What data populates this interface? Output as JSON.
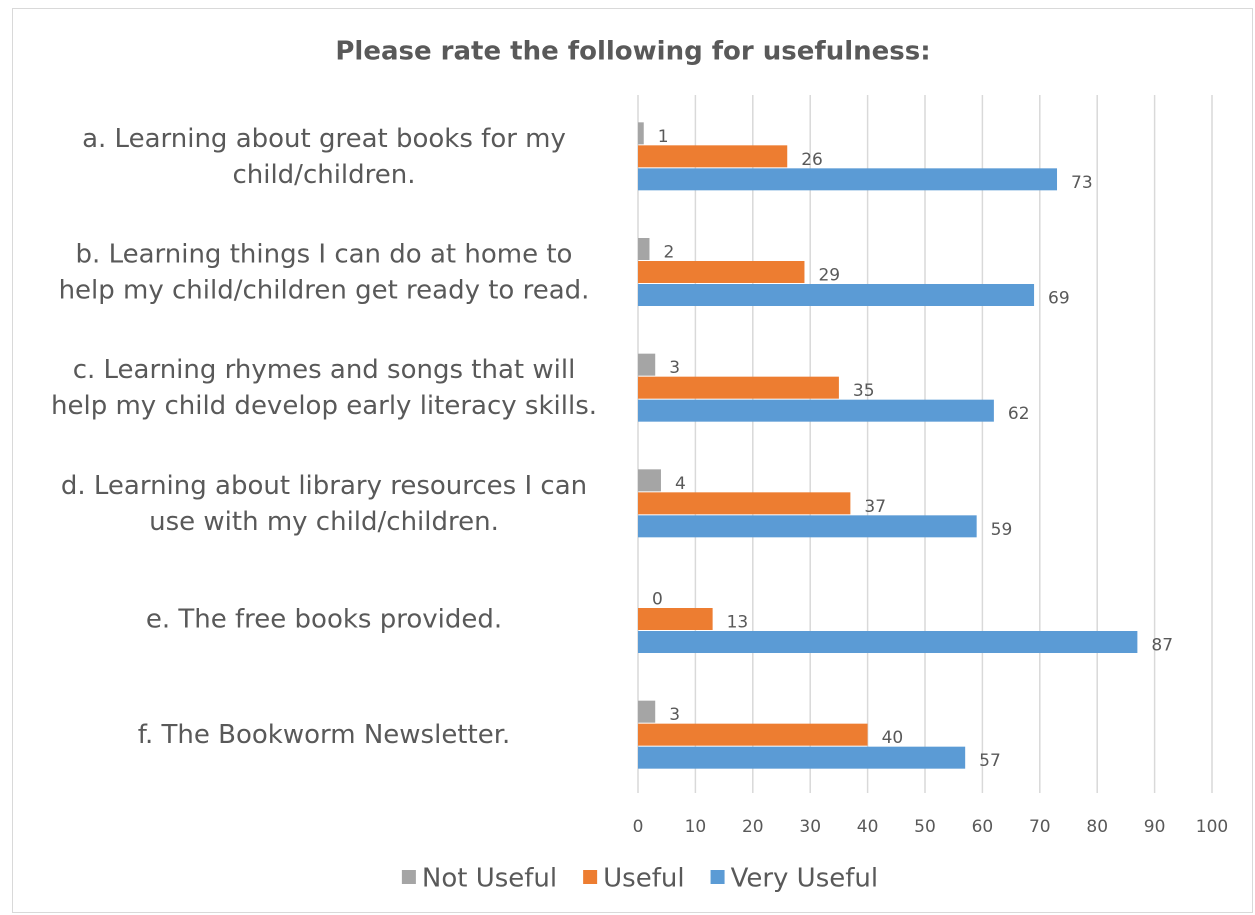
{
  "chart_data": {
    "type": "bar",
    "orientation": "horizontal",
    "title": "Please rate the following for usefulness:",
    "categories": [
      "a. Learning about great books for my child/children.",
      "b. Learning things I can do at home to help my child/children get ready to read.",
      "c. Learning rhymes and songs that will help my child develop early literacy skills.",
      "d. Learning about library resources I can use with my child/children.",
      "e. The free books provided.",
      "f. The Bookworm Newsletter."
    ],
    "series": [
      {
        "name": "Not Useful",
        "color": "#a5a5a5",
        "values": [
          1,
          2,
          3,
          4,
          0,
          3
        ]
      },
      {
        "name": "Useful",
        "color": "#ed7d31",
        "values": [
          26,
          29,
          35,
          37,
          13,
          40
        ]
      },
      {
        "name": "Very Useful",
        "color": "#5b9bd5",
        "values": [
          73,
          69,
          62,
          59,
          87,
          57
        ]
      }
    ],
    "xlim": [
      0,
      100
    ],
    "xticks": [
      0,
      10,
      20,
      30,
      40,
      50,
      60,
      70,
      80,
      90,
      100
    ],
    "grid": true,
    "legend": "bottom"
  }
}
